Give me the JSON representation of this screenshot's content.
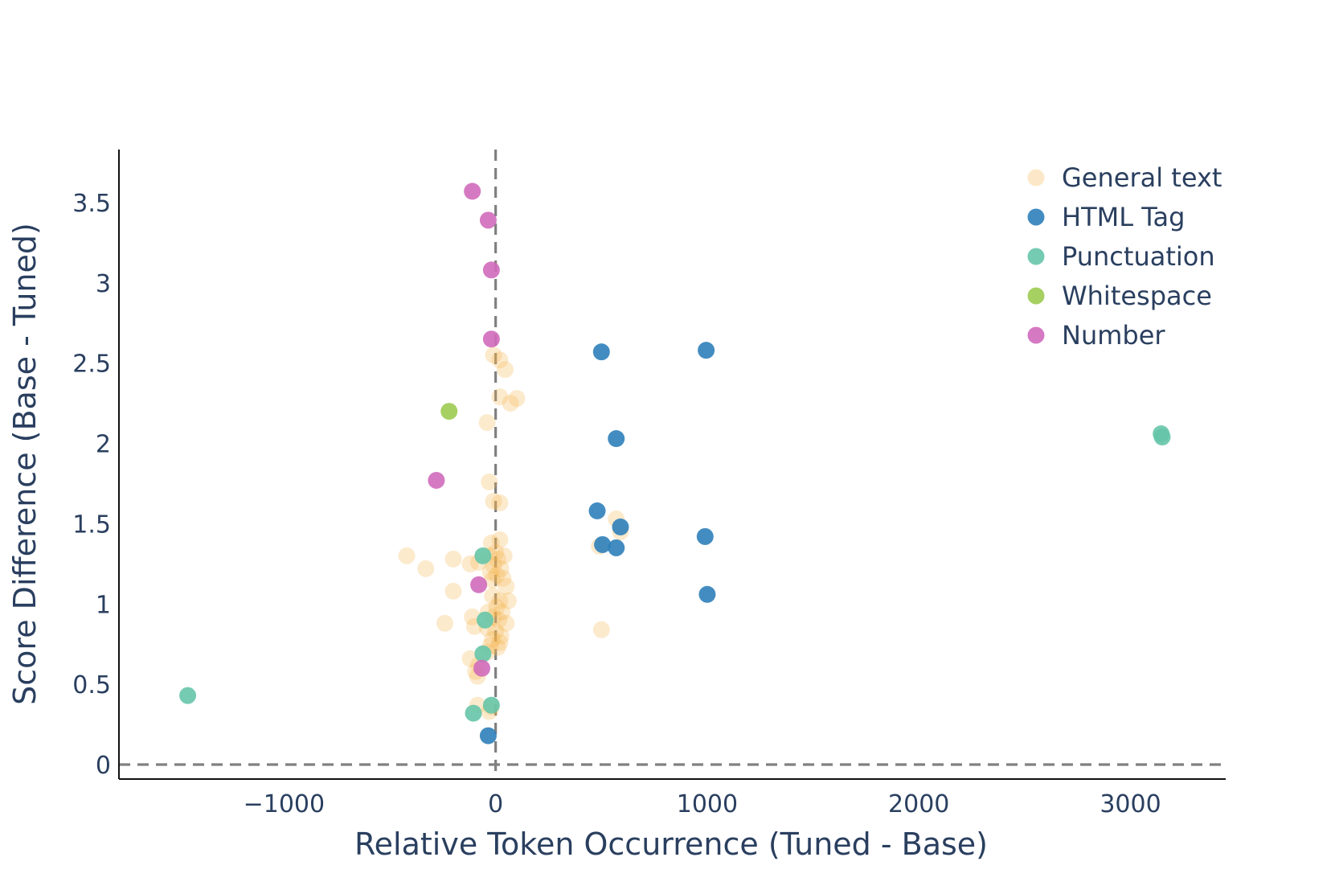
{
  "chart_data": {
    "type": "scatter",
    "xlabel": "Relative Token Occurrence (Tuned - Base)",
    "ylabel": "Score Difference (Base - Tuned)",
    "xlim": [
      -1780,
      3450
    ],
    "ylim": [
      -0.09,
      3.83
    ],
    "x_ticks": [
      -1000,
      0,
      1000,
      2000,
      3000
    ],
    "x_tick_labels": [
      "−1000",
      "0",
      "1000",
      "2000",
      "3000"
    ],
    "y_ticks": [
      0,
      0.5,
      1,
      1.5,
      2,
      2.5,
      3,
      3.5
    ],
    "y_tick_labels": [
      "0",
      "0.5",
      "1",
      "1.5",
      "2",
      "2.5",
      "3",
      "3.5"
    ],
    "grid": false,
    "legend_position": "top-right",
    "reference_lines": [
      {
        "orientation": "vertical",
        "value": 0,
        "style": "dashed",
        "color": "#808080"
      },
      {
        "orientation": "horizontal",
        "value": 0,
        "style": "dashed",
        "color": "#808080"
      }
    ],
    "series": [
      {
        "name": "General text",
        "color": "#f4b24a",
        "opacity": 0.28,
        "points": [
          [
            -10,
            2.55
          ],
          [
            20,
            2.52
          ],
          [
            45,
            2.46
          ],
          [
            20,
            2.29
          ],
          [
            70,
            2.25
          ],
          [
            100,
            2.28
          ],
          [
            -40,
            2.13
          ],
          [
            -30,
            1.76
          ],
          [
            -10,
            1.64
          ],
          [
            20,
            1.63
          ],
          [
            570,
            1.53
          ],
          [
            590,
            1.45
          ],
          [
            490,
            1.36
          ],
          [
            -420,
            1.3
          ],
          [
            -330,
            1.22
          ],
          [
            -200,
            1.28
          ],
          [
            -120,
            1.25
          ],
          [
            -80,
            1.26
          ],
          [
            -20,
            1.38
          ],
          [
            20,
            1.4
          ],
          [
            -30,
            1.3
          ],
          [
            0,
            1.32
          ],
          [
            40,
            1.3
          ],
          [
            10,
            1.28
          ],
          [
            -10,
            1.24
          ],
          [
            -25,
            1.2
          ],
          [
            5,
            1.18
          ],
          [
            25,
            1.22
          ],
          [
            -15,
            1.15
          ],
          [
            35,
            1.16
          ],
          [
            -200,
            1.08
          ],
          [
            50,
            1.11
          ],
          [
            -15,
            1.05
          ],
          [
            20,
            1.02
          ],
          [
            60,
            1.02
          ],
          [
            5,
            0.98
          ],
          [
            -35,
            0.95
          ],
          [
            30,
            0.95
          ],
          [
            -110,
            0.92
          ],
          [
            -10,
            0.92
          ],
          [
            15,
            0.9
          ],
          [
            50,
            0.88
          ],
          [
            -240,
            0.88
          ],
          [
            -100,
            0.86
          ],
          [
            -40,
            0.85
          ],
          [
            0,
            0.83
          ],
          [
            25,
            0.8
          ],
          [
            500,
            0.84
          ],
          [
            -15,
            0.78
          ],
          [
            20,
            0.76
          ],
          [
            -25,
            0.74
          ],
          [
            10,
            0.73
          ],
          [
            -40,
            0.7
          ],
          [
            -120,
            0.66
          ],
          [
            -80,
            0.62
          ],
          [
            -95,
            0.58
          ],
          [
            -85,
            0.55
          ],
          [
            -85,
            0.37
          ],
          [
            -20,
            0.36
          ],
          [
            -30,
            0.33
          ]
        ]
      },
      {
        "name": "HTML Tag",
        "color": "#2f7fba",
        "opacity": 0.9,
        "points": [
          [
            500,
            2.57
          ],
          [
            995,
            2.58
          ],
          [
            570,
            2.03
          ],
          [
            480,
            1.58
          ],
          [
            590,
            1.48
          ],
          [
            505,
            1.37
          ],
          [
            570,
            1.35
          ],
          [
            990,
            1.42
          ],
          [
            1000,
            1.06
          ],
          [
            -35,
            0.18
          ]
        ]
      },
      {
        "name": "Punctuation",
        "color": "#66c5a8",
        "opacity": 0.9,
        "points": [
          [
            3145,
            2.06
          ],
          [
            3150,
            2.04
          ],
          [
            -60,
            1.3
          ],
          [
            -50,
            0.9
          ],
          [
            -60,
            0.69
          ],
          [
            -1455,
            0.43
          ],
          [
            -105,
            0.32
          ],
          [
            -20,
            0.37
          ]
        ]
      },
      {
        "name": "Whitespace",
        "color": "#9ccb51",
        "opacity": 0.9,
        "points": [
          [
            -220,
            2.2
          ]
        ]
      },
      {
        "name": "Number",
        "color": "#d06cbb",
        "opacity": 0.9,
        "points": [
          [
            -110,
            3.57
          ],
          [
            -35,
            3.39
          ],
          [
            -20,
            3.08
          ],
          [
            -20,
            2.65
          ],
          [
            -280,
            1.77
          ],
          [
            -80,
            1.12
          ],
          [
            -65,
            0.6
          ]
        ]
      }
    ]
  }
}
